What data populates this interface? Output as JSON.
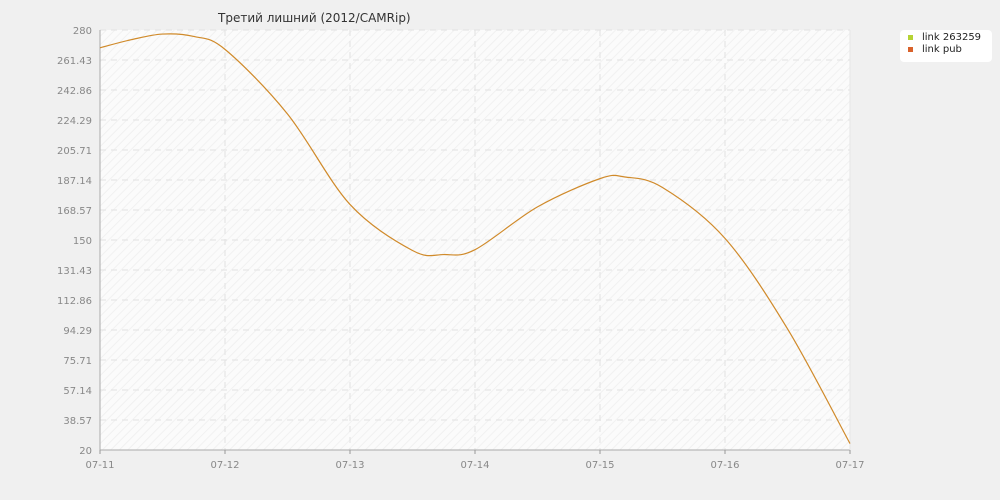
{
  "chart_data": {
    "type": "line",
    "title": "Третий лишний  (2012/CAMRip)",
    "xlabel": "",
    "ylabel": "",
    "x": [
      "07-11",
      "07-12",
      "07-13",
      "07-14",
      "07-15",
      "07-16",
      "07-17"
    ],
    "ylim": [
      20,
      280
    ],
    "yticks": [
      "20",
      "38.57",
      "57.14",
      "75.71",
      "94.29",
      "112.86",
      "131.43",
      "150",
      "168.57",
      "187.14",
      "205.71",
      "224.29",
      "242.86",
      "261.43",
      "280"
    ],
    "grid": true,
    "legend_position": "top-right",
    "legend": [
      {
        "label": "link 263259",
        "color": "#b5d334"
      },
      {
        "label": "link pub",
        "color": "#d9622b"
      }
    ],
    "series": [
      {
        "color": "#d08a2a",
        "curve": [
          [
            0,
            269
          ],
          [
            0.25,
            274
          ],
          [
            0.5,
            277.5
          ],
          [
            0.75,
            276
          ],
          [
            1.0,
            268
          ],
          [
            1.5,
            228
          ],
          [
            2.0,
            172
          ],
          [
            2.5,
            143.5
          ],
          [
            2.75,
            141
          ],
          [
            3.0,
            144
          ],
          [
            3.5,
            170.5
          ],
          [
            4.0,
            188
          ],
          [
            4.2,
            189
          ],
          [
            4.5,
            182.5
          ],
          [
            5.0,
            151
          ],
          [
            5.5,
            95
          ],
          [
            6.0,
            24
          ]
        ]
      }
    ]
  }
}
